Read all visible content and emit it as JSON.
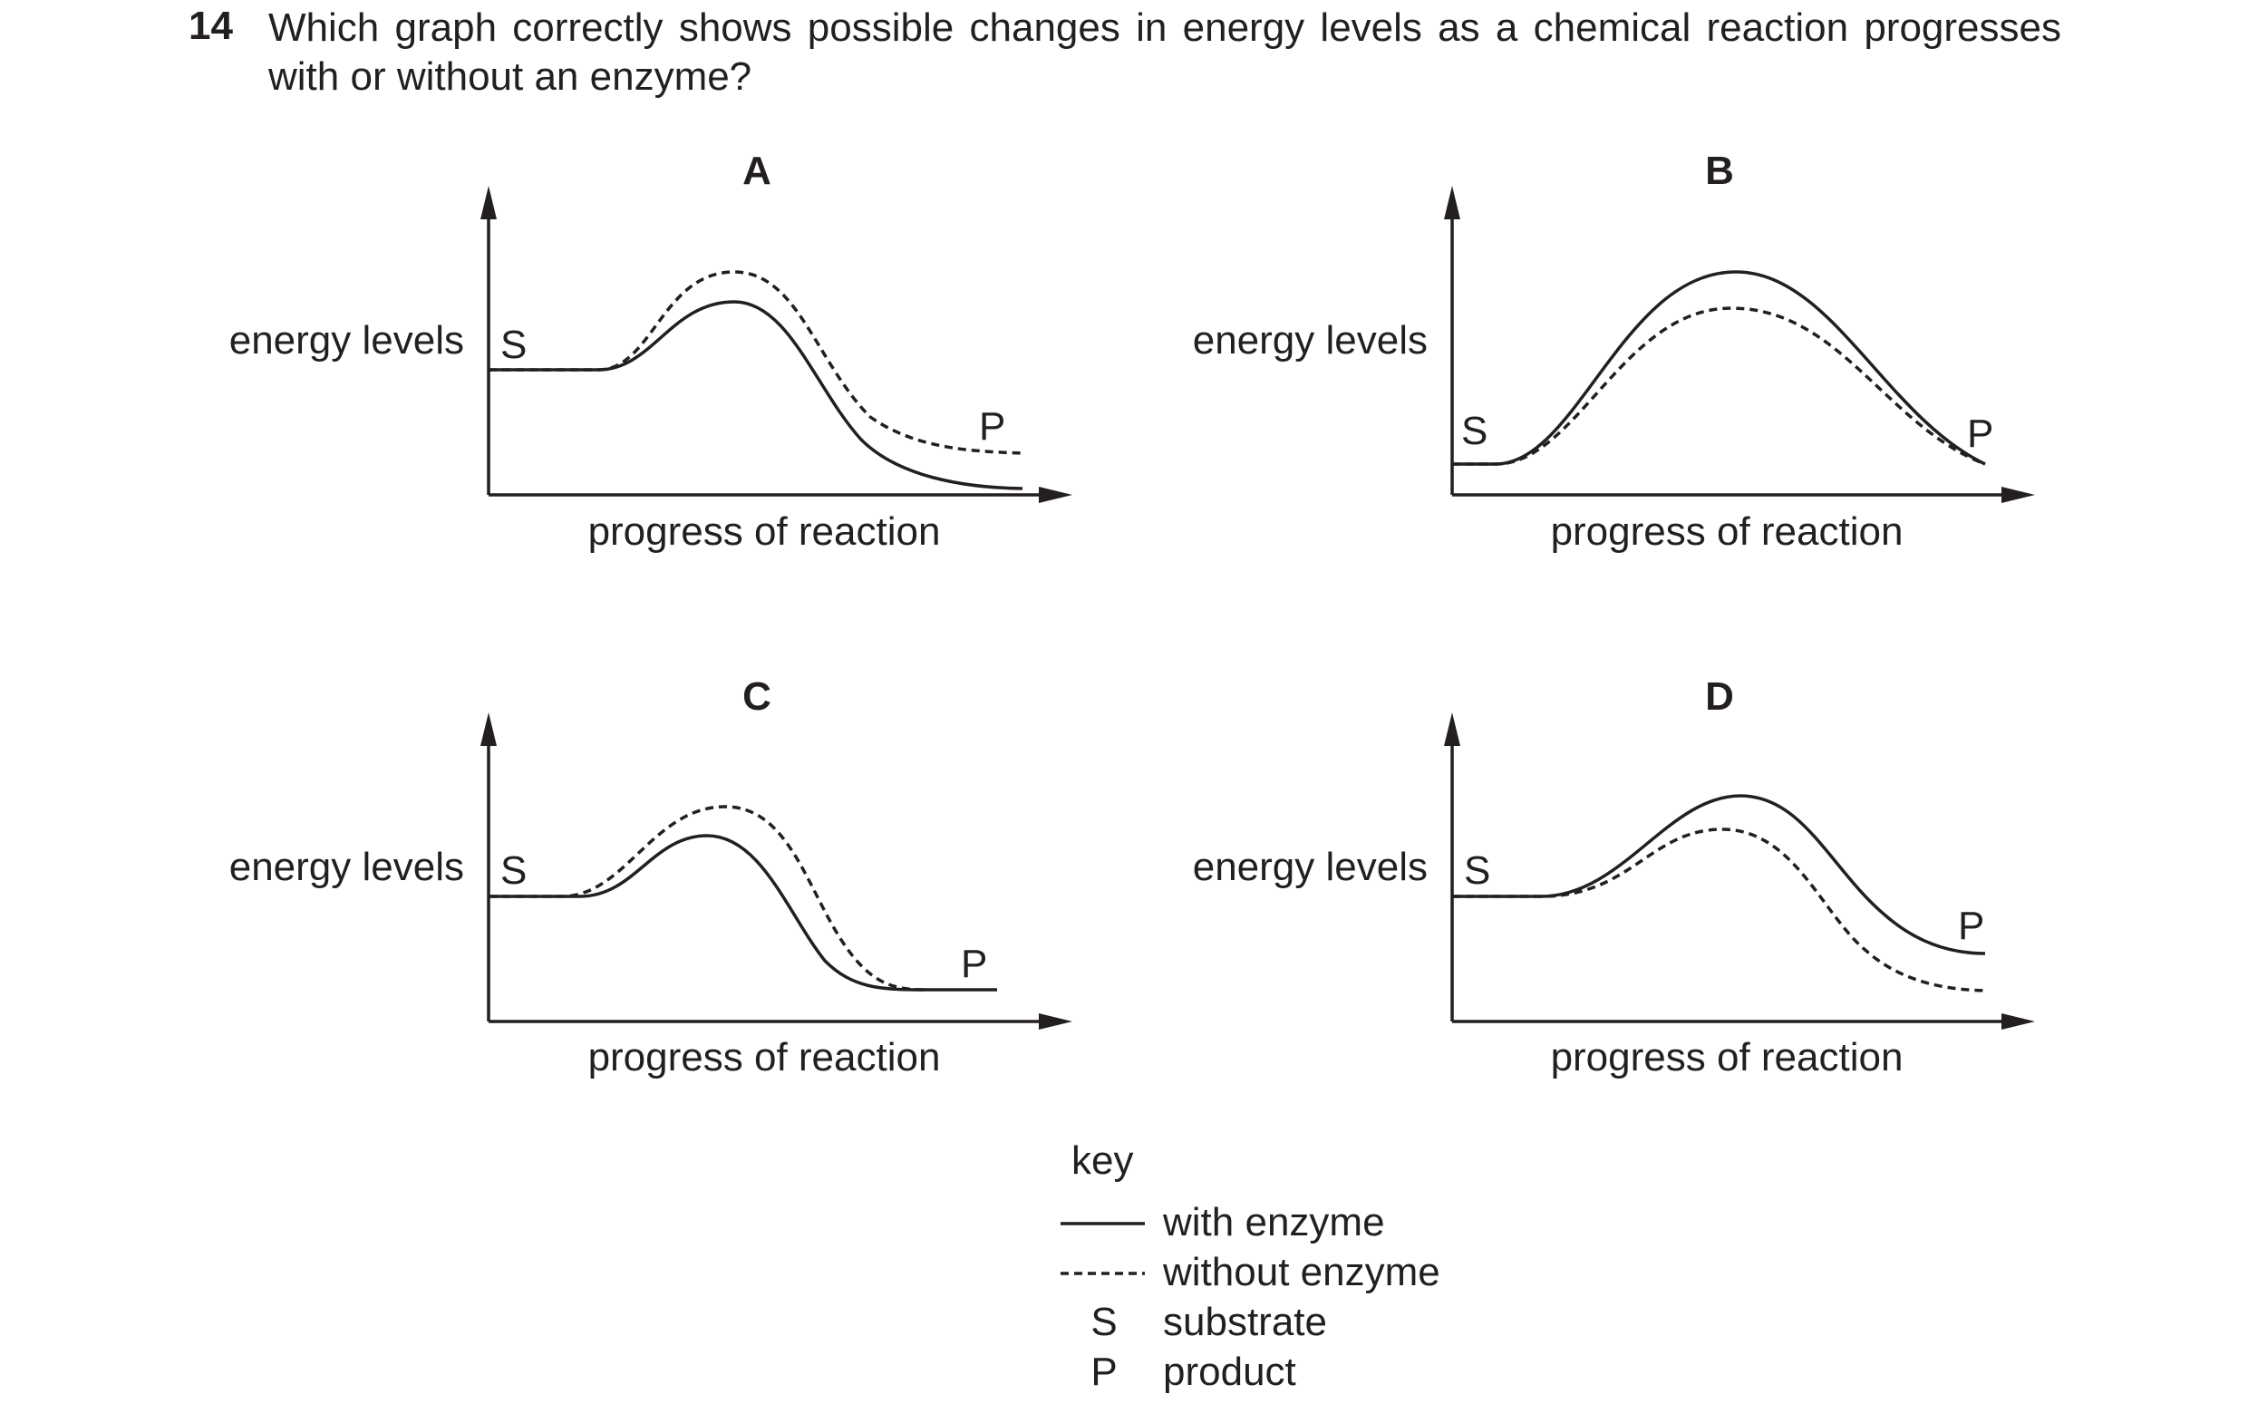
{
  "question": {
    "number": "14",
    "text": "Which graph correctly shows possible changes in energy levels as a chemical reaction progresses with or without an enzyme?"
  },
  "graphs": [
    {
      "title": "A",
      "ylabel": "energy levels",
      "xlabel": "progress of reaction",
      "start_label": "S",
      "end_label": "P"
    },
    {
      "title": "B",
      "ylabel": "energy levels",
      "xlabel": "progress of reaction",
      "start_label": "S",
      "end_label": "P"
    },
    {
      "title": "C",
      "ylabel": "energy levels",
      "xlabel": "progress of reaction",
      "start_label": "S",
      "end_label": "P"
    },
    {
      "title": "D",
      "ylabel": "energy levels",
      "xlabel": "progress of reaction",
      "start_label": "S",
      "end_label": "P"
    }
  ],
  "key": {
    "title": "key",
    "items": [
      {
        "symbol": "solid-line",
        "label": "with enzyme"
      },
      {
        "symbol": "dashed-line",
        "label": "without enzyme"
      },
      {
        "symbol": "S",
        "label": "substrate"
      },
      {
        "symbol": "P",
        "label": "product"
      }
    ]
  }
}
